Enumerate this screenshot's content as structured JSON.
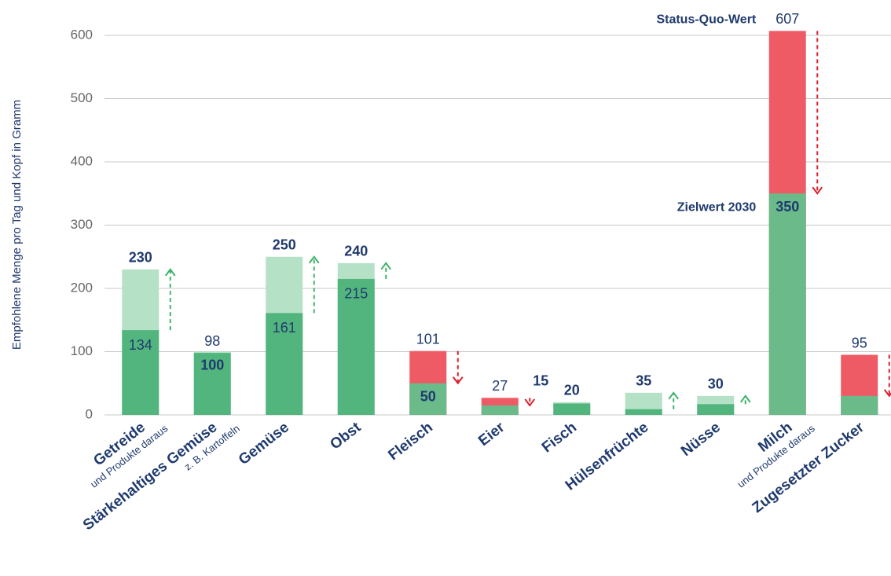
{
  "chart_data": {
    "type": "bar",
    "y_label": "Empfohlene Menge pro Tag und Kopf in Gramm",
    "categories": [
      "Getreide",
      "Stärkehaltiges Gemüse",
      "Gemüse",
      "Obst",
      "Fleisch",
      "Eier",
      "Fisch",
      "Hülsenfrüchte",
      "Nüsse",
      "Milch",
      "Zugesetzter Zucker"
    ],
    "subtitles": [
      "und Produkte daraus",
      "z. B. Kartoffeln",
      null,
      null,
      null,
      null,
      null,
      null,
      null,
      "und Produkte daraus",
      null
    ],
    "series": [
      {
        "name": "Status-Quo-Wert",
        "color": "#52b57d",
        "over_color": "#ef5b65",
        "values": [
          134,
          98,
          161,
          215,
          101,
          27,
          18,
          9,
          17,
          607,
          95
        ],
        "value_labels": [
          "134",
          "98",
          "161",
          "215",
          "101",
          "27",
          null,
          null,
          null,
          "607",
          "95"
        ]
      },
      {
        "name": "Zielwert 2030",
        "color": "#b5e2c6",
        "under_color": "#6aba8a",
        "values": [
          230,
          100,
          250,
          240,
          50,
          15,
          20,
          35,
          30,
          350,
          30
        ]
      }
    ],
    "ylim": [
      0,
      650
    ],
    "yticks": [
      0,
      100,
      200,
      300,
      400,
      500,
      600
    ],
    "grid": true
  }
}
